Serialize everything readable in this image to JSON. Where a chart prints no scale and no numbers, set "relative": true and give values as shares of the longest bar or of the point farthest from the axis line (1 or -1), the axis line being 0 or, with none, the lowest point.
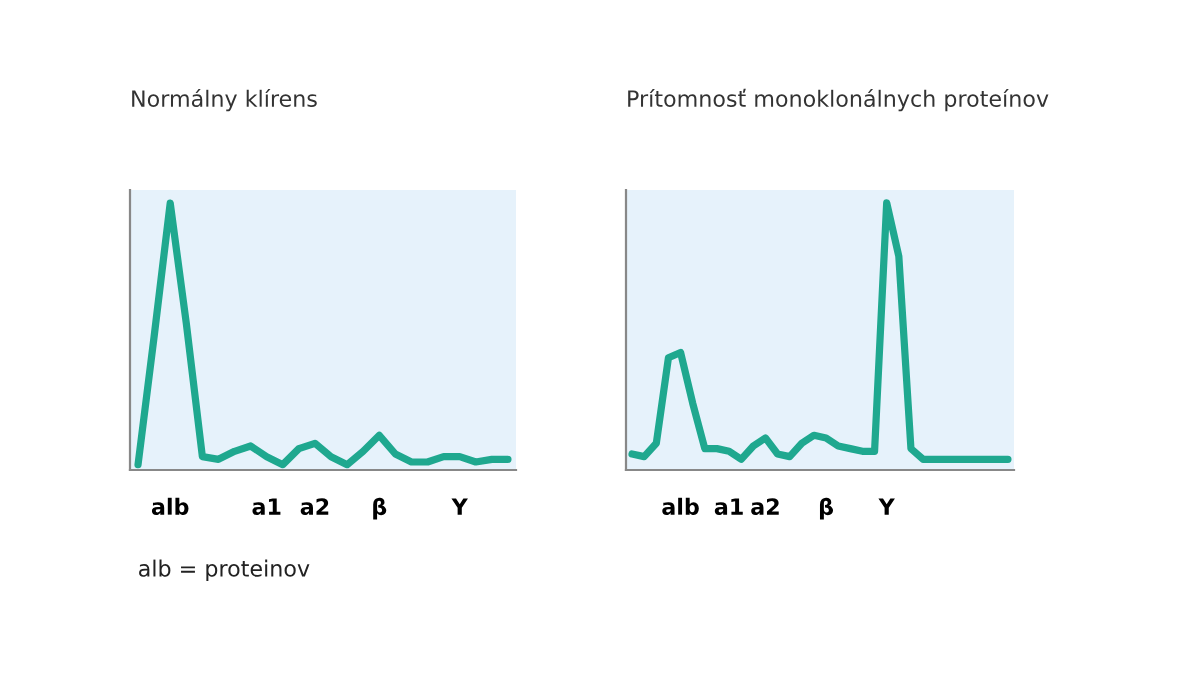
{
  "chart_data": [
    {
      "type": "line",
      "title": "Normálny klírens",
      "relative": true,
      "color": "#1fa88f",
      "legend": false,
      "grid": false,
      "categories": [
        null,
        null,
        "alb",
        null,
        null,
        null,
        null,
        null,
        "a1",
        null,
        null,
        "a2",
        null,
        null,
        null,
        "β",
        null,
        null,
        null,
        null,
        "Y",
        null,
        null,
        null
      ],
      "values": [
        0.02,
        0.5,
        1.0,
        0.55,
        0.05,
        0.04,
        0.07,
        0.09,
        0.05,
        0.02,
        0.08,
        0.1,
        0.05,
        0.02,
        0.07,
        0.13,
        0.06,
        0.03,
        0.03,
        0.05,
        0.05,
        0.03,
        0.04,
        0.04
      ],
      "annotations": [
        "alb = proteinov"
      ]
    },
    {
      "type": "line",
      "title": "Prítomnosť monoklonálnych proteínov",
      "relative": true,
      "color": "#1fa88f",
      "legend": false,
      "grid": false,
      "categories": [
        null,
        null,
        null,
        null,
        "alb",
        null,
        null,
        null,
        "a1",
        null,
        null,
        "a2",
        null,
        null,
        null,
        null,
        "β",
        null,
        null,
        null,
        null,
        "Y",
        null,
        null,
        null,
        null,
        null,
        null,
        null,
        null,
        null,
        null
      ],
      "values": [
        0.06,
        0.05,
        0.1,
        0.42,
        0.44,
        0.25,
        0.08,
        0.08,
        0.07,
        0.04,
        0.09,
        0.12,
        0.06,
        0.05,
        0.1,
        0.13,
        0.12,
        0.09,
        0.08,
        0.07,
        0.07,
        1.0,
        0.8,
        0.08,
        0.04,
        0.04,
        0.04,
        0.04,
        0.04,
        0.04,
        0.04,
        0.04
      ]
    }
  ]
}
